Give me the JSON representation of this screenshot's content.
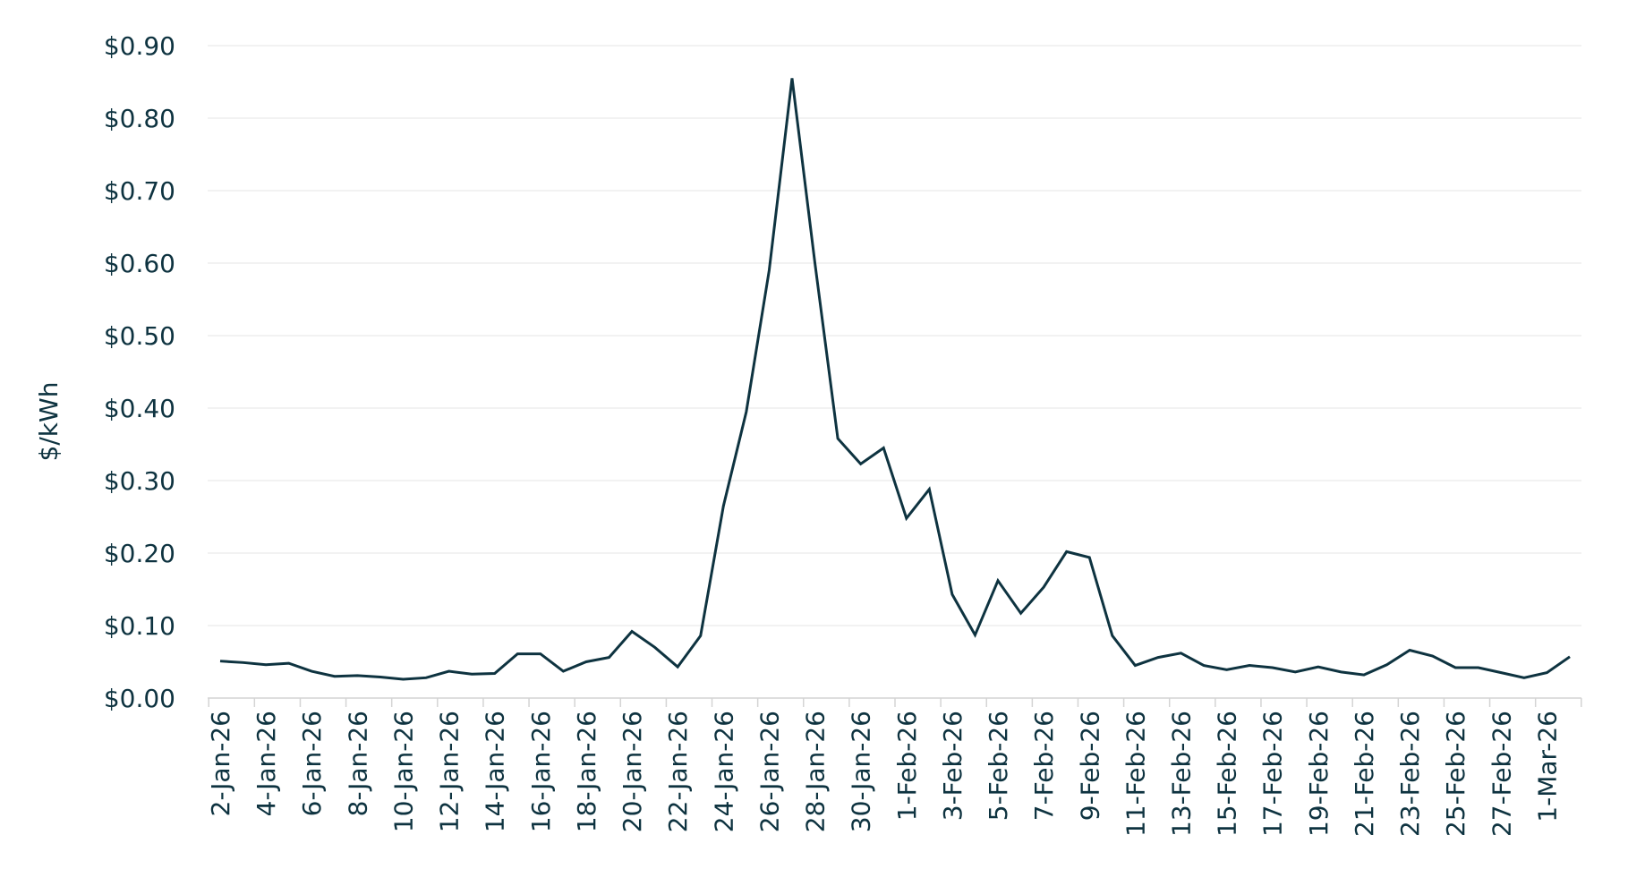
{
  "chart_data": {
    "type": "line",
    "title": "",
    "xlabel": "",
    "ylabel": "$/kWh",
    "ylim": [
      0,
      0.9
    ],
    "yticks": [
      0,
      0.1,
      0.2,
      0.3,
      0.4,
      0.5,
      0.6,
      0.7,
      0.8,
      0.9
    ],
    "ytick_labels": [
      "$0.00",
      "$0.10",
      "$0.20",
      "$0.30",
      "$0.40",
      "$0.50",
      "$0.60",
      "$0.70",
      "$0.80",
      "$0.90"
    ],
    "x": [
      "2-Jan-26",
      "3-Jan-26",
      "4-Jan-26",
      "5-Jan-26",
      "6-Jan-26",
      "7-Jan-26",
      "8-Jan-26",
      "9-Jan-26",
      "10-Jan-26",
      "11-Jan-26",
      "12-Jan-26",
      "13-Jan-26",
      "14-Jan-26",
      "15-Jan-26",
      "16-Jan-26",
      "17-Jan-26",
      "18-Jan-26",
      "19-Jan-26",
      "20-Jan-26",
      "21-Jan-26",
      "22-Jan-26",
      "23-Jan-26",
      "24-Jan-26",
      "25-Jan-26",
      "26-Jan-26",
      "27-Jan-26",
      "28-Jan-26",
      "29-Jan-26",
      "30-Jan-26",
      "31-Jan-26",
      "1-Feb-26",
      "2-Feb-26",
      "3-Feb-26",
      "4-Feb-26",
      "5-Feb-26",
      "6-Feb-26",
      "7-Feb-26",
      "8-Feb-26",
      "9-Feb-26",
      "10-Feb-26",
      "11-Feb-26",
      "12-Feb-26",
      "13-Feb-26",
      "14-Feb-26",
      "15-Feb-26",
      "16-Feb-26",
      "17-Feb-26",
      "18-Feb-26",
      "19-Feb-26",
      "20-Feb-26",
      "21-Feb-26",
      "22-Feb-26",
      "23-Feb-26",
      "24-Feb-26",
      "25-Feb-26",
      "26-Feb-26",
      "27-Feb-26",
      "28-Feb-26",
      "1-Mar-26",
      "2-Mar-26"
    ],
    "x_tick_labels": [
      "2-Jan-26",
      "4-Jan-26",
      "6-Jan-26",
      "8-Jan-26",
      "10-Jan-26",
      "12-Jan-26",
      "14-Jan-26",
      "16-Jan-26",
      "18-Jan-26",
      "20-Jan-26",
      "22-Jan-26",
      "24-Jan-26",
      "26-Jan-26",
      "28-Jan-26",
      "30-Jan-26",
      "1-Feb-26",
      "3-Feb-26",
      "5-Feb-26",
      "7-Feb-26",
      "9-Feb-26",
      "11-Feb-26",
      "13-Feb-26",
      "15-Feb-26",
      "17-Feb-26",
      "19-Feb-26",
      "21-Feb-26",
      "23-Feb-26",
      "25-Feb-26",
      "27-Feb-26",
      "1-Mar-26"
    ],
    "series": [
      {
        "values": [
          0.051,
          0.049,
          0.046,
          0.048,
          0.037,
          0.03,
          0.031,
          0.029,
          0.026,
          0.028,
          0.037,
          0.033,
          0.034,
          0.061,
          0.061,
          0.037,
          0.05,
          0.056,
          0.092,
          0.07,
          0.043,
          0.086,
          0.265,
          0.395,
          0.59,
          0.855,
          0.6,
          0.358,
          0.323,
          0.345,
          0.248,
          0.288,
          0.143,
          0.087,
          0.162,
          0.117,
          0.153,
          0.202,
          0.194,
          0.086,
          0.045,
          0.056,
          0.062,
          0.045,
          0.039,
          0.045,
          0.042,
          0.036,
          0.043,
          0.036,
          0.032,
          0.046,
          0.066,
          0.058,
          0.042,
          0.042,
          0.035,
          0.028,
          0.035,
          0.057
        ],
        "color": "#0e3340"
      }
    ],
    "grid": true,
    "legend": "none",
    "line_color": "#0e3340",
    "grid_color": "#eeeeee",
    "axis_color": "#d4d4d4",
    "text_color": "#0e3340"
  }
}
